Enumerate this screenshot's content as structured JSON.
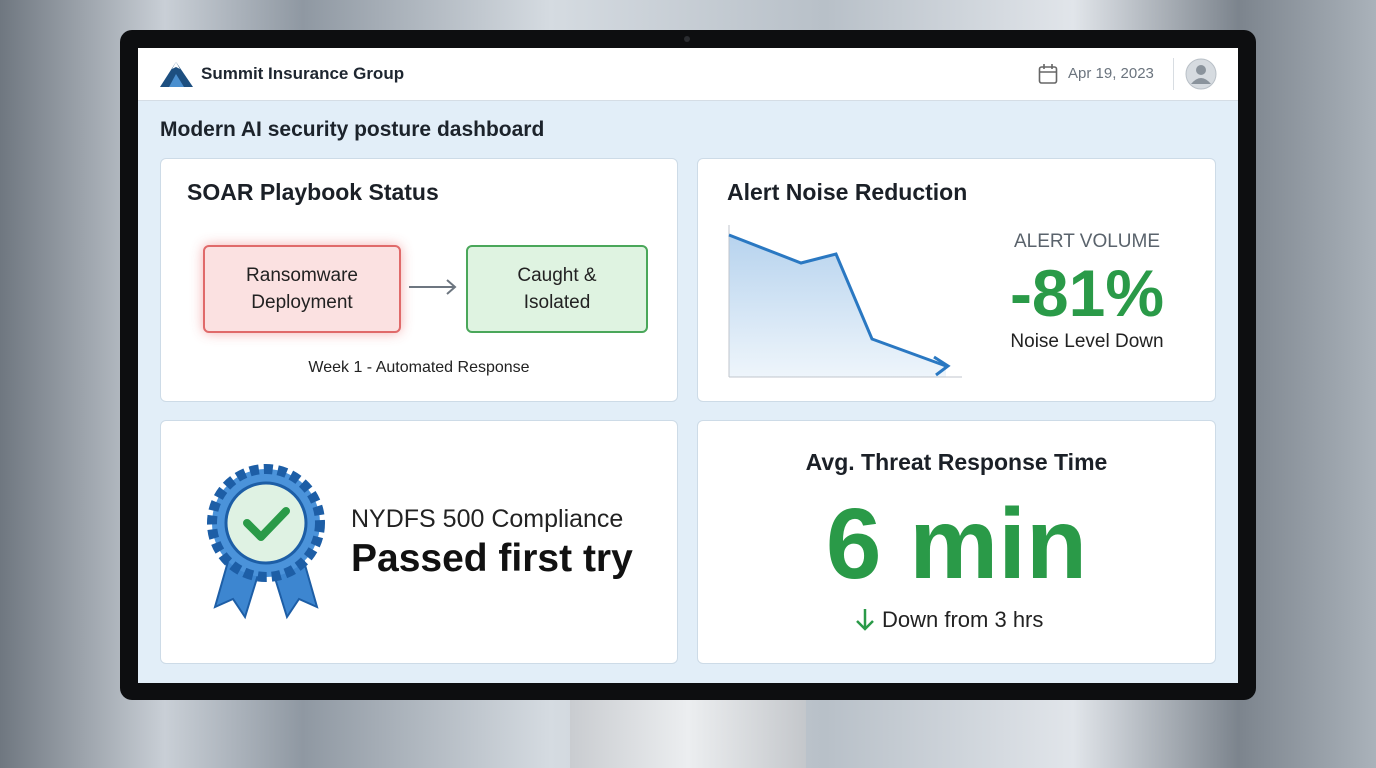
{
  "header": {
    "company": "Summit Insurance Group",
    "date": "Apr 19, 2023"
  },
  "page_title": "Modern AI security posture dashboard",
  "cards": {
    "playbook": {
      "title": "SOAR Playbook Status",
      "from": "Ransomware\nDeployment",
      "to": "Caught &\nIsolated",
      "caption": "Week 1 - Automated Response"
    },
    "noise": {
      "title": "Alert Noise Reduction",
      "metric_label": "ALERT VOLUME",
      "value": "-81%",
      "subtitle": "Noise Level Down"
    },
    "compliance": {
      "title": "NYDFS 500 Compliance",
      "status": "Passed first try"
    },
    "response": {
      "title": "Avg. Threat Response Time",
      "value": "6 min",
      "note": "Down from 3 hrs"
    }
  }
}
